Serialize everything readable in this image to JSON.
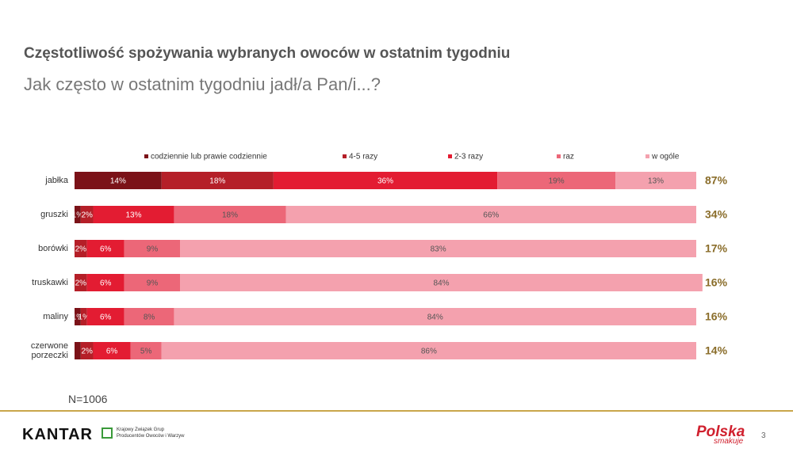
{
  "chart_data": {
    "type": "stacked-bar-horizontal",
    "title": "Częstotliwość spożywania wybranych owoców w ostatnim tygodniu",
    "subtitle": "Jak często w ostatnim tygodniu jadł/a Pan/i...?",
    "categories": [
      "jabłka",
      "gruszki",
      "borówki",
      "truskawki",
      "maliny",
      "czerwone porzeczki"
    ],
    "xlim": [
      0,
      100
    ],
    "series": [
      {
        "name": "codziennie lub prawie codziennie",
        "color": "#7b1218",
        "values": [
          14,
          1,
          0,
          0,
          1,
          1
        ],
        "value_labels": [
          "14%",
          "1%",
          null,
          null,
          "1%",
          null
        ]
      },
      {
        "name": "4-5 razy",
        "color": "#b51f28",
        "values": [
          18,
          2,
          2,
          2,
          1,
          2
        ],
        "value_labels": [
          "18%",
          "2%",
          "2%",
          "2%",
          "1%",
          "2%"
        ]
      },
      {
        "name": "2-3 razy",
        "color": "#e31c32",
        "values": [
          36,
          13,
          6,
          6,
          6,
          6
        ],
        "value_labels": [
          "36%",
          "13%",
          "6%",
          "6%",
          "6%",
          "6%"
        ]
      },
      {
        "name": "raz",
        "color": "#ec6778",
        "values": [
          19,
          18,
          9,
          9,
          8,
          5
        ],
        "value_labels": [
          "19%",
          "18%",
          "9%",
          "9%",
          "8%",
          "5%"
        ]
      },
      {
        "name": "w ogóle",
        "color": "#f4a1ae",
        "values": [
          13,
          66,
          83,
          84,
          84,
          86
        ],
        "value_labels": [
          "13%",
          "66%",
          "83%",
          "84%",
          "84%",
          "86%"
        ]
      }
    ],
    "totals": {
      "values": [
        87,
        34,
        17,
        16,
        16,
        14
      ],
      "value_labels": [
        "87%",
        "34%",
        "17%",
        "16%",
        "16%",
        "14%"
      ]
    },
    "note": "N=1006"
  },
  "footer": {
    "brand": "KANTAR",
    "partner": "Krajowy Związek Grup Producentów Owoców i Warzyw",
    "logo": "Polska",
    "logo_sub": "smakuje",
    "page": "3"
  }
}
